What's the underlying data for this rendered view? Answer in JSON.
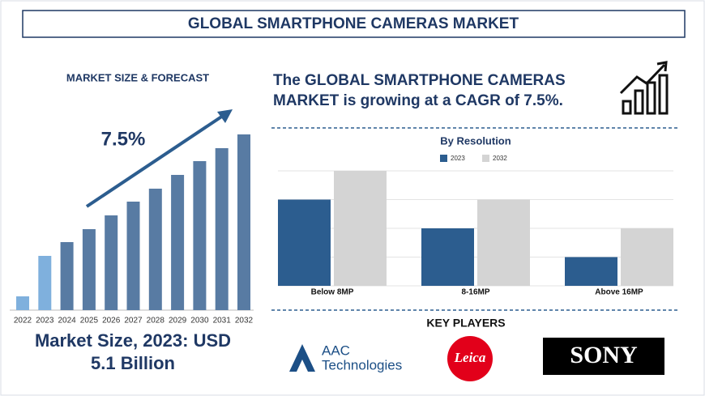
{
  "header": {
    "title": "GLOBAL SMARTPHONE CAMERAS MARKET"
  },
  "forecast_heading": "MARKET SIZE & FORECAST",
  "cagr_text": [
    "The GLOBAL SMARTPHONE CAMERAS",
    "MARKET is growing at a CAGR of 7.5%."
  ],
  "market_size": [
    "Market Size, 2023: USD",
    "5.1 Billion"
  ],
  "key_players": {
    "title": "KEY PLAYERS",
    "logos": [
      "AAC",
      "Technologies",
      "Leica",
      "SONY"
    ]
  },
  "chart_data": [
    {
      "type": "bar",
      "annotation": "7.5%",
      "categories": [
        "2022",
        "2023",
        "2024",
        "2025",
        "2026",
        "2027",
        "2028",
        "2029",
        "2030",
        "2031",
        "2032"
      ],
      "values": [
        17,
        67,
        84,
        100,
        117,
        134,
        150,
        167,
        184,
        200,
        217
      ],
      "colors": [
        "#7fb0dd",
        "#7fb0dd",
        "#587ba3",
        "#587ba3",
        "#587ba3",
        "#587ba3",
        "#587ba3",
        "#587ba3",
        "#587ba3",
        "#587ba3",
        "#587ba3"
      ],
      "ylim": [
        0,
        220
      ]
    },
    {
      "type": "grouped-bar",
      "title": "By Resolution",
      "categories": [
        "Below 8MP",
        "8-16MP",
        "Above 16MP"
      ],
      "series": [
        {
          "name": "2023",
          "color": "#2c5d8f",
          "values": [
            3,
            2,
            1
          ]
        },
        {
          "name": "2032",
          "color": "#d4d4d4",
          "values": [
            4,
            3,
            2
          ]
        }
      ],
      "ylim": [
        0,
        4
      ],
      "yticks": [
        0,
        1,
        2,
        3,
        4
      ],
      "grid": true
    }
  ]
}
